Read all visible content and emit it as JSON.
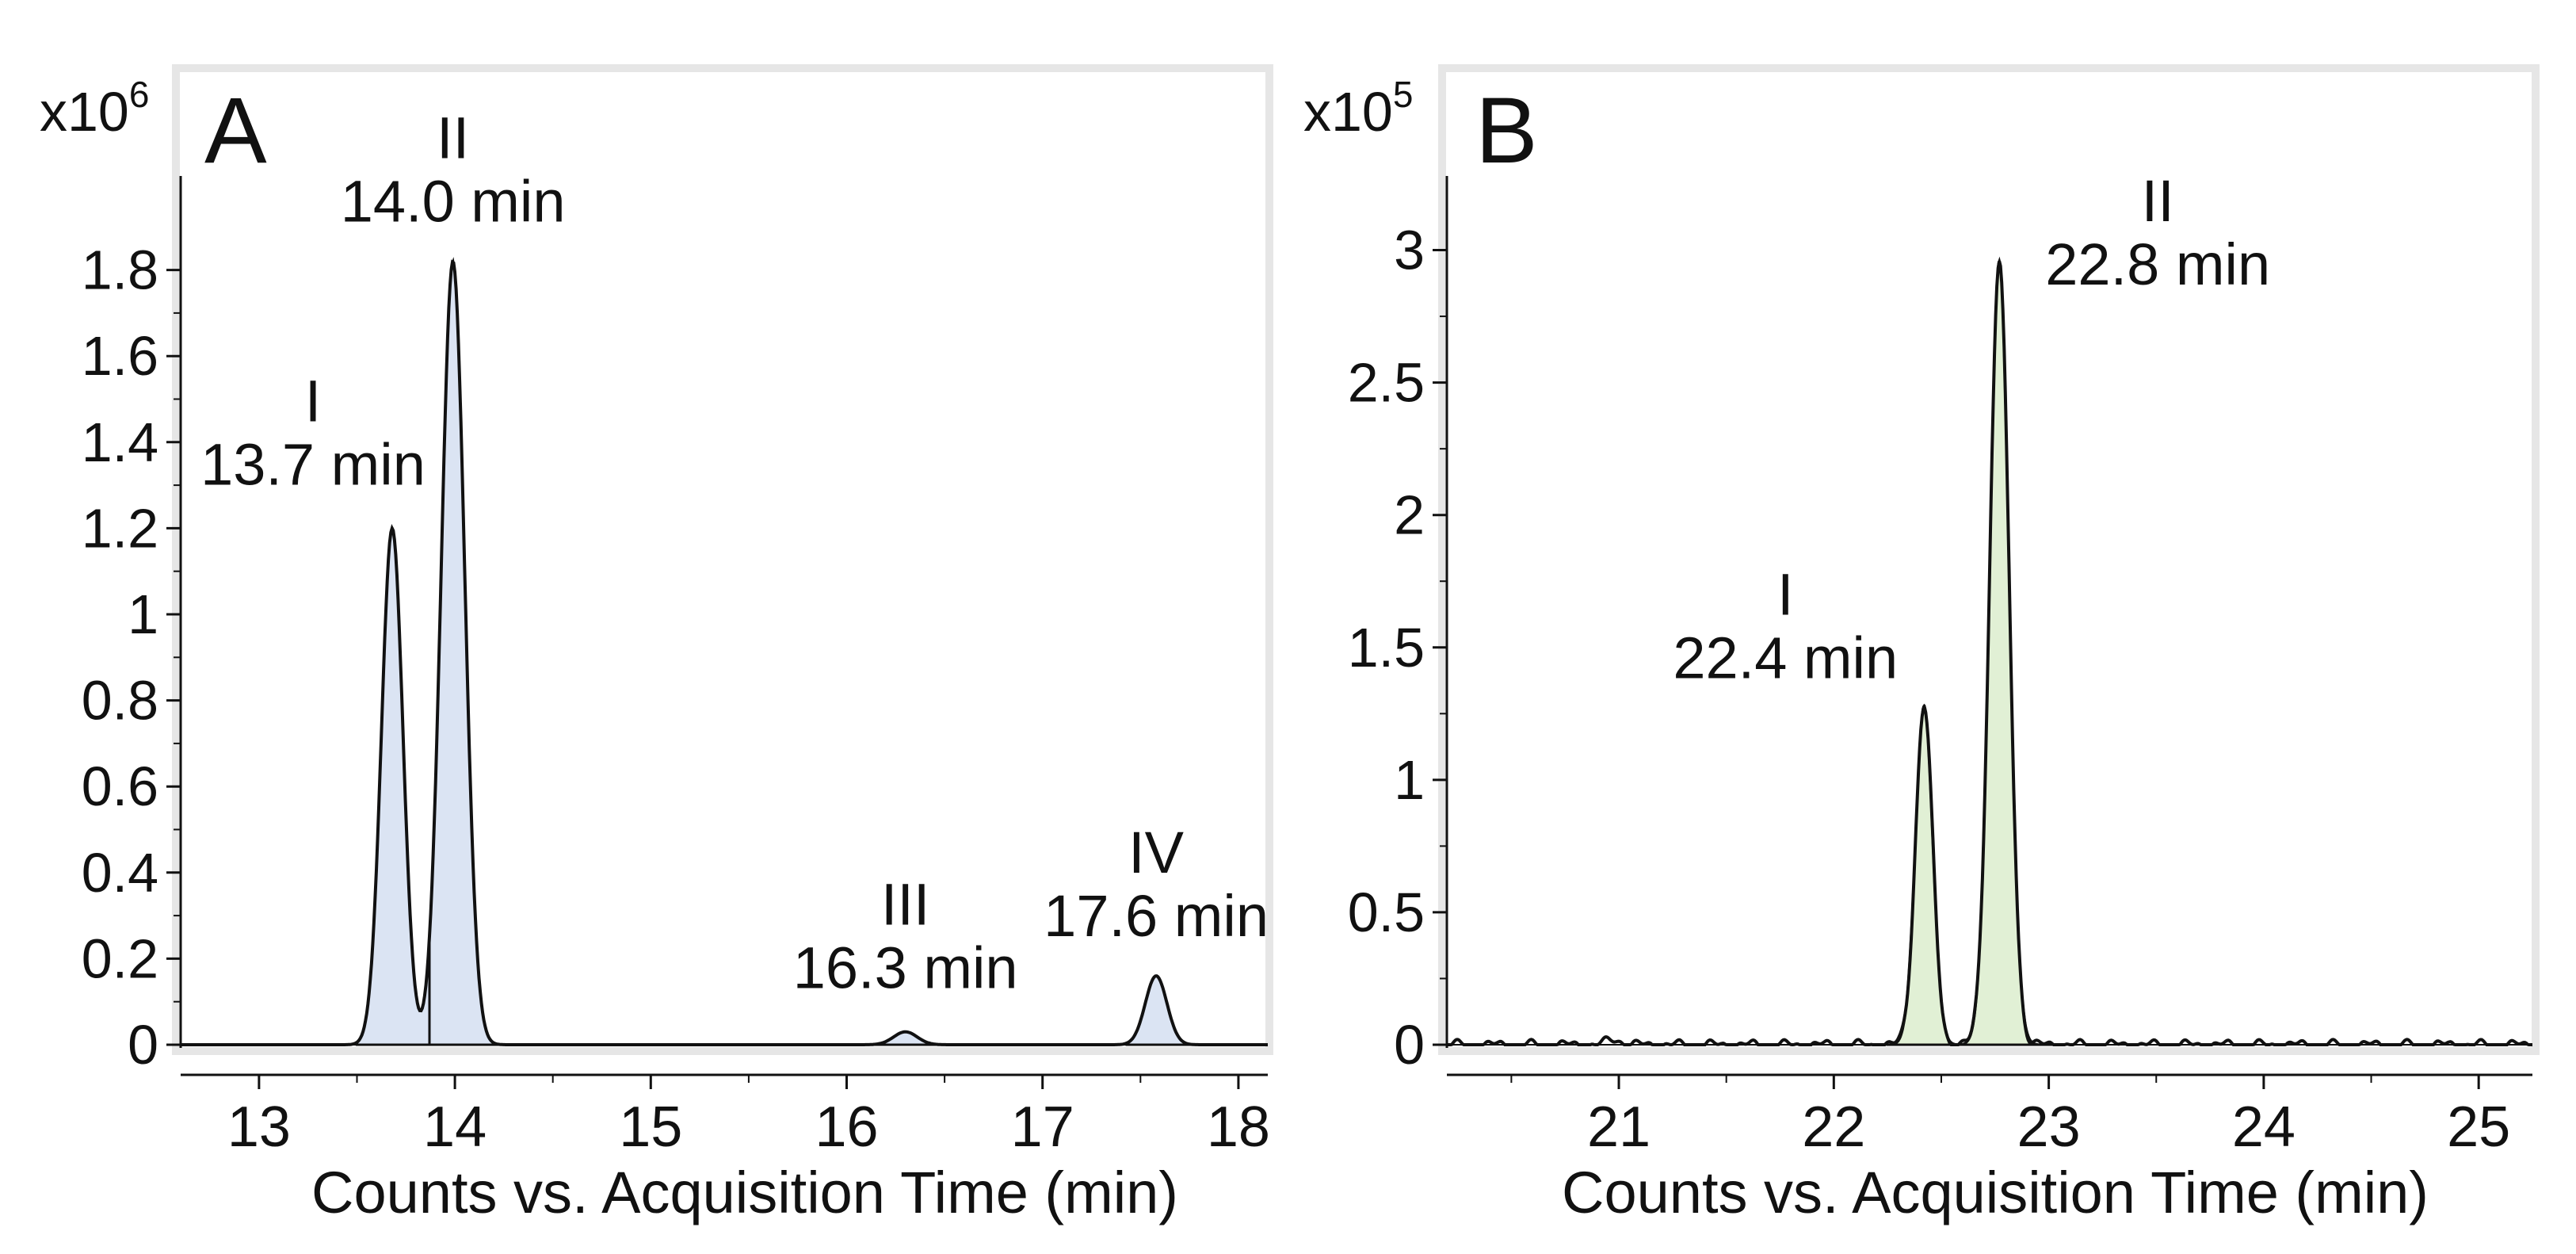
{
  "chart_data": [
    {
      "panel": "A",
      "type": "line",
      "xlabel": "Counts vs. Acquisition Time (min)",
      "ylabel": "",
      "y_multiplier_label": {
        "base": "x10",
        "exp": "6"
      },
      "xlim": [
        12.6,
        18.15
      ],
      "ylim": [
        0,
        2.0
      ],
      "xticks": [
        13,
        14,
        15,
        16,
        17,
        18
      ],
      "xtick_labels": [
        "13",
        "14",
        "15",
        "16",
        "17",
        "18"
      ],
      "yticks": [
        0,
        0.2,
        0.4,
        0.6,
        0.8,
        1,
        1.2,
        1.4,
        1.6,
        1.8
      ],
      "ytick_labels": [
        "0",
        "0.2",
        "0.4",
        "0.6",
        "0.8",
        "1",
        "1.2",
        "1.4",
        "1.6",
        "1.8"
      ],
      "fill_color": "#dbe4f3",
      "line_color": "#111111",
      "grid": false,
      "peaks": [
        {
          "label": "I",
          "rt_label": "13.7 min",
          "rt": 13.68,
          "height": 1.2,
          "sigma": 0.055,
          "start": 13.5,
          "end": 13.87
        },
        {
          "label": "II",
          "rt_label": "14.0 min",
          "rt": 13.99,
          "height": 1.82,
          "sigma": 0.06,
          "start": 13.87,
          "end": 14.78
        },
        {
          "label": "III",
          "rt_label": "16.3 min",
          "rt": 16.3,
          "height": 0.03,
          "sigma": 0.06,
          "start": 16.13,
          "end": 16.5
        },
        {
          "label": "IV",
          "rt_label": "17.6 min",
          "rt": 17.58,
          "height": 0.16,
          "sigma": 0.055,
          "start": 17.43,
          "end": 17.95
        }
      ]
    },
    {
      "panel": "B",
      "type": "line",
      "xlabel": "Counts vs. Acquisition Time (min)",
      "ylabel": "",
      "y_multiplier_label": {
        "base": "x10",
        "exp": "5"
      },
      "xlim": [
        20.2,
        25.25
      ],
      "ylim": [
        0,
        3.25
      ],
      "xticks": [
        21,
        22,
        23,
        24,
        25
      ],
      "xtick_labels": [
        "21",
        "22",
        "23",
        "24",
        "25"
      ],
      "yticks": [
        0,
        0.5,
        1,
        1.5,
        2,
        2.5,
        3
      ],
      "ytick_labels": [
        "0",
        "0.5",
        "1",
        "1.5",
        "2",
        "2.5",
        "3"
      ],
      "fill_color": "#e1f0d5",
      "line_color": "#111111",
      "grid": false,
      "peaks": [
        {
          "label": "I",
          "rt_label": "22.4 min",
          "rt": 22.42,
          "height": 1.28,
          "sigma": 0.04,
          "start": 22.25,
          "end": 22.59
        },
        {
          "label": "II",
          "rt_label": "22.8 min",
          "rt": 22.77,
          "height": 2.96,
          "sigma": 0.045,
          "start": 22.59,
          "end": 23.05
        }
      ]
    }
  ]
}
